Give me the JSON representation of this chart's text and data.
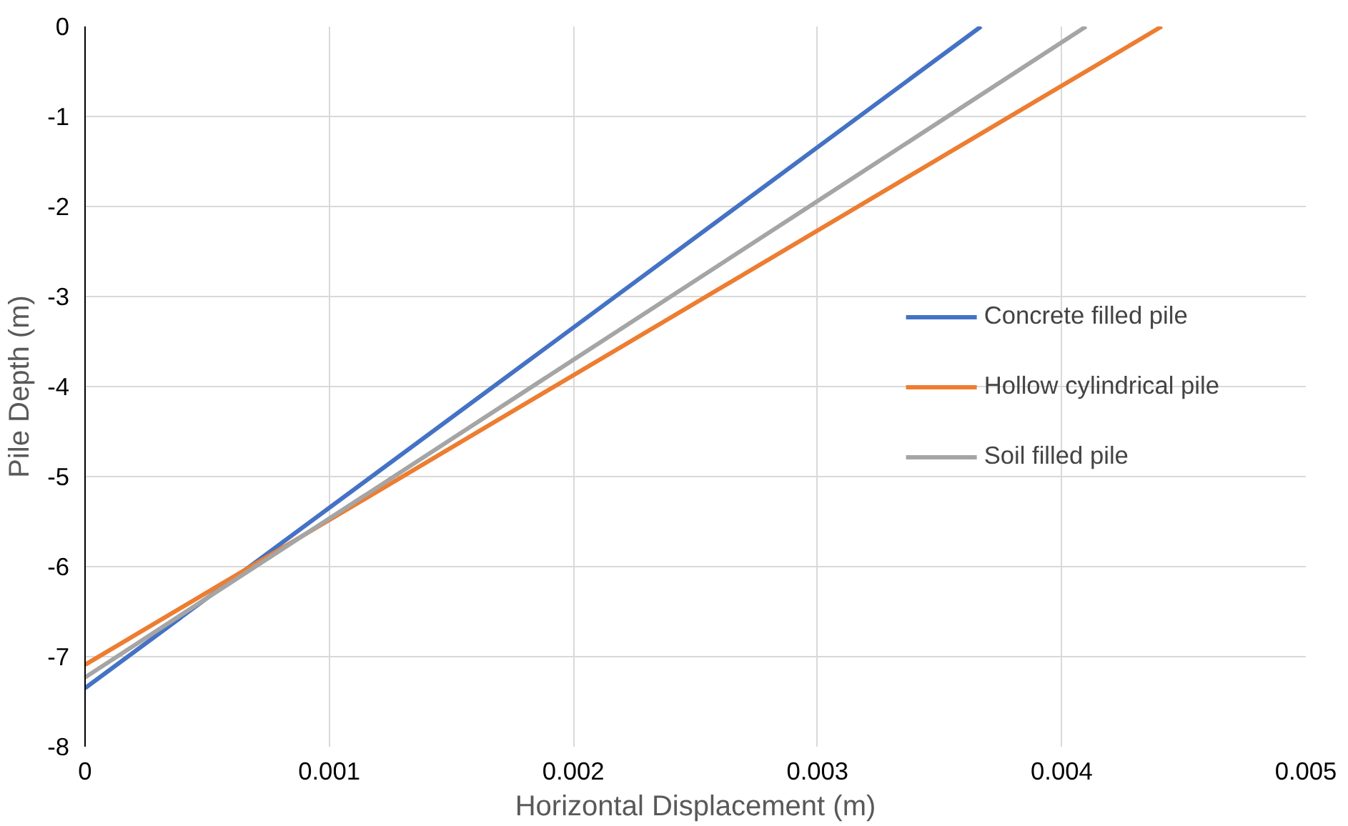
{
  "chart_data": {
    "type": "line",
    "xlabel": "Horizontal Displacement (m)",
    "ylabel": "Pile Depth (m)",
    "xlim": [
      0,
      0.005
    ],
    "xticks": [
      0,
      0.001,
      0.002,
      0.003,
      0.004,
      0.005
    ],
    "ylim": [
      -8,
      0
    ],
    "yticks": [
      -8,
      -7,
      -6,
      -5,
      -4,
      -3,
      -2,
      -1,
      0
    ],
    "grid": true,
    "legend": "right",
    "marker": "none",
    "line_style": "solid",
    "series": [
      {
        "name": "Concrete filled pile",
        "color": "#4472c4",
        "x": [
          0,
          0.00367
        ],
        "values": [
          -7.35,
          0
        ]
      },
      {
        "name": "Hollow cylindrical pile",
        "color": "#ed7d31",
        "x": [
          0,
          0.00441
        ],
        "values": [
          -7.09,
          0
        ]
      },
      {
        "name": "Soil filled pile",
        "color": "#a5a5a5",
        "x": [
          0,
          0.0041
        ],
        "values": [
          -7.23,
          0
        ]
      }
    ]
  }
}
